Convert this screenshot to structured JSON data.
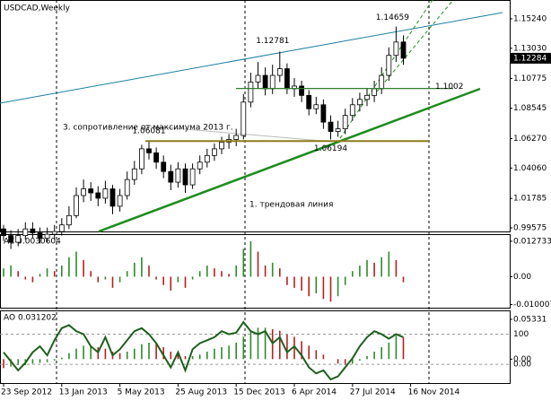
{
  "chart_data": [
    {
      "type": "candlestick",
      "title": "USDCAD,Weekly",
      "x": [
        "2012-09-23",
        "2012-10-07",
        "2012-10-21",
        "2012-11-04",
        "2012-11-18",
        "2012-12-02",
        "2012-12-16",
        "2012-12-30",
        "2013-01-13",
        "2013-01-27",
        "2013-02-10",
        "2013-02-24",
        "2013-03-10",
        "2013-03-24",
        "2013-04-07",
        "2013-04-21",
        "2013-05-05",
        "2013-05-19",
        "2013-06-02",
        "2013-06-16",
        "2013-06-30",
        "2013-07-14",
        "2013-07-28",
        "2013-08-11",
        "2013-08-25",
        "2013-09-08",
        "2013-09-22",
        "2013-10-06",
        "2013-10-20",
        "2013-11-03",
        "2013-11-17",
        "2013-12-01",
        "2013-12-15",
        "2013-12-29",
        "2014-01-12",
        "2014-01-26",
        "2014-02-09",
        "2014-02-23",
        "2014-03-09",
        "2014-03-23",
        "2014-04-06",
        "2014-04-20",
        "2014-05-04",
        "2014-05-18",
        "2014-06-01",
        "2014-06-15",
        "2014-06-29",
        "2014-07-13",
        "2014-07-27",
        "2014-08-10",
        "2014-08-24",
        "2014-09-07",
        "2014-09-21",
        "2014-10-05",
        "2014-10-19",
        "2014-11-02"
      ],
      "open": [
        0.995,
        0.99,
        0.985,
        0.99,
        0.995,
        0.992,
        0.988,
        0.991,
        0.993,
        0.998,
        1.005,
        1.02,
        1.025,
        1.022,
        1.018,
        1.025,
        1.012,
        1.02,
        1.032,
        1.04,
        1.055,
        1.052,
        1.045,
        1.038,
        1.03,
        1.04,
        1.028,
        1.04,
        1.045,
        1.05,
        1.055,
        1.06,
        1.062,
        1.065,
        1.09,
        1.105,
        1.11,
        1.1,
        1.11,
        1.115,
        1.1,
        1.102,
        1.095,
        1.085,
        1.088,
        1.075,
        1.068,
        1.07,
        1.08,
        1.088,
        1.092,
        1.095,
        1.1,
        1.11,
        1.125,
        1.135
      ],
      "high": [
        0.998,
        0.994,
        0.995,
        1.0,
        1.0,
        0.996,
        0.996,
        0.998,
        1.003,
        1.012,
        1.026,
        1.032,
        1.03,
        1.027,
        1.031,
        1.028,
        1.025,
        1.038,
        1.046,
        1.058,
        1.06081,
        1.056,
        1.05,
        1.043,
        1.045,
        1.044,
        1.044,
        1.05,
        1.055,
        1.059,
        1.064,
        1.066,
        1.07,
        1.096,
        1.112,
        1.12,
        1.116,
        1.118,
        1.12781,
        1.119,
        1.108,
        1.106,
        1.099,
        1.094,
        1.092,
        1.08,
        1.076,
        1.085,
        1.093,
        1.097,
        1.1,
        1.106,
        1.116,
        1.131,
        1.14659,
        1.14
      ],
      "low": [
        0.986,
        0.98,
        0.982,
        0.987,
        0.988,
        0.984,
        0.985,
        0.987,
        0.99,
        0.995,
        1.003,
        1.015,
        1.016,
        1.012,
        1.014,
        1.006,
        1.008,
        1.017,
        1.028,
        1.036,
        1.047,
        1.04,
        1.033,
        1.024,
        1.026,
        1.022,
        1.025,
        1.036,
        1.041,
        1.046,
        1.051,
        1.055,
        1.057,
        1.062,
        1.086,
        1.1,
        1.095,
        1.096,
        1.105,
        1.096,
        1.094,
        1.09,
        1.08,
        1.081,
        1.07,
        1.06194,
        1.064,
        1.066,
        1.076,
        1.083,
        1.087,
        1.09,
        1.096,
        1.106,
        1.12,
        1.118
      ],
      "close": [
        0.99,
        0.985,
        0.99,
        0.995,
        0.992,
        0.988,
        0.991,
        0.993,
        0.998,
        1.005,
        1.02,
        1.025,
        1.022,
        1.018,
        1.025,
        1.012,
        1.02,
        1.032,
        1.04,
        1.055,
        1.052,
        1.045,
        1.038,
        1.03,
        1.04,
        1.028,
        1.04,
        1.045,
        1.05,
        1.055,
        1.06,
        1.062,
        1.065,
        1.09,
        1.105,
        1.11,
        1.1,
        1.11,
        1.115,
        1.1,
        1.102,
        1.095,
        1.085,
        1.088,
        1.075,
        1.068,
        1.07,
        1.08,
        1.088,
        1.092,
        1.095,
        1.1,
        1.11,
        1.125,
        1.135,
        1.12284
      ],
      "up_color": "#ffffff",
      "down_color": "#000000",
      "ylim": [
        0.9931,
        1.1658
      ],
      "yticks": [
        {
          "value": 1.1524,
          "label": "1.15240"
        },
        {
          "value": 1.1303,
          "label": "1.13030"
        },
        1.10775,
        1.08545,
        {
          "value": 1.0627,
          "label": "1.06270"
        },
        {
          "value": 1.0406,
          "label": "1.04060"
        },
        1.01785,
        0.99575
      ],
      "levels": [
        {
          "value": 1.1002,
          "color": "#2f7d2f"
        }
      ],
      "resistance": {
        "label": "3. сопротивление от максимума 2013 г.",
        "color": "#8b7d1a"
      },
      "trendline_label": "1. трендовая линия"
    },
    {
      "type": "histogram",
      "title": "AC 0.0030604",
      "values": [
        0.003,
        0.004,
        0.002,
        -0.001,
        -0.002,
        0.001,
        0.003,
        0.002,
        0.004,
        0.007,
        0.009,
        0.006,
        0.002,
        -0.002,
        -0.001,
        -0.004,
        -0.002,
        0.002,
        0.005,
        0.007,
        0.004,
        -0.001,
        -0.003,
        -0.005,
        -0.002,
        -0.004,
        -0.001,
        0.002,
        0.004,
        0.003,
        0.002,
        0.001,
        0.004,
        0.01,
        0.012733,
        0.009,
        0.004,
        0.005,
        0.003,
        -0.003,
        -0.004,
        -0.005,
        -0.007,
        -0.006,
        -0.008,
        -0.009,
        -0.007,
        -0.003,
        0.002,
        0.004,
        0.006,
        0.005,
        0.007,
        0.009,
        0.006,
        -0.002
      ],
      "up_color": "#2e8b2e",
      "down_color": "#b22222",
      "ylim": [
        -0.01114,
        0.01496
      ],
      "yticks": [
        0.012733,
        {
          "value": 0,
          "label": "0.00"
        },
        -0.010007
      ]
    },
    {
      "type": "histogram",
      "title": "AO 0.031202",
      "values": [
        -0.012,
        -0.01,
        -0.008,
        -0.008,
        -0.006,
        -0.005,
        -0.004,
        -0.002,
        0.002,
        0.008,
        0.014,
        0.018,
        0.018,
        0.016,
        0.014,
        0.01,
        0.008,
        0.01,
        0.014,
        0.02,
        0.022,
        0.02,
        0.016,
        0.01,
        0.008,
        0.004,
        0.004,
        0.006,
        0.01,
        0.014,
        0.016,
        0.018,
        0.022,
        0.03,
        0.038,
        0.042,
        0.042,
        0.04,
        0.038,
        0.034,
        0.03,
        0.024,
        0.018,
        0.012,
        0.006,
        0.0,
        -0.006,
        -0.008,
        -0.006,
        -0.002,
        0.004,
        0.01,
        0.016,
        0.022,
        0.031202,
        0.029
      ],
      "up_color": "#2e8b2e",
      "down_color": "#b22222",
      "ylim": [
        -0.032,
        0.064
      ],
      "yticks": [
        0.05331,
        {
          "value": 0,
          "label": "0.00"
        }
      ],
      "series": [
        {
          "axis": "y2",
          "color": "#1f5f1f",
          "values": [
            40,
            10,
            -20,
            5,
            40,
            60,
            30,
            80,
            120,
            130,
            110,
            100,
            60,
            40,
            90,
            30,
            50,
            80,
            110,
            120,
            100,
            70,
            30,
            -10,
            40,
            -20,
            50,
            70,
            80,
            90,
            110,
            100,
            105,
            140,
            110,
            100,
            110,
            70,
            90,
            40,
            60,
            30,
            -10,
            -30,
            -20,
            -50,
            -40,
            -10,
            20,
            60,
            90,
            110,
            100,
            85,
            100,
            90
          ]
        }
      ],
      "y2lim": [
        -62,
        176
      ],
      "y2ticks": [
        100,
        {
          "value": 0,
          "label": "0.00"
        }
      ],
      "xticks": [
        {
          "value": "2012-09-23",
          "label": "23 Sep 2012"
        },
        {
          "value": "2013-01-13",
          "label": "13 Jan 2013"
        },
        {
          "value": "2013-05-05",
          "label": "5 May 2013"
        },
        {
          "value": "2013-08-25",
          "label": "25 Aug 2013"
        },
        {
          "value": "2013-12-15",
          "label": "15 Dec 2013"
        },
        {
          "value": "2014-04-06",
          "label": "6 Apr 2014"
        },
        {
          "value": "2014-07-27",
          "label": "27 Jul 2014"
        },
        {
          "value": "2014-11-16",
          "label": "16 Nov 2014"
        }
      ]
    }
  ]
}
